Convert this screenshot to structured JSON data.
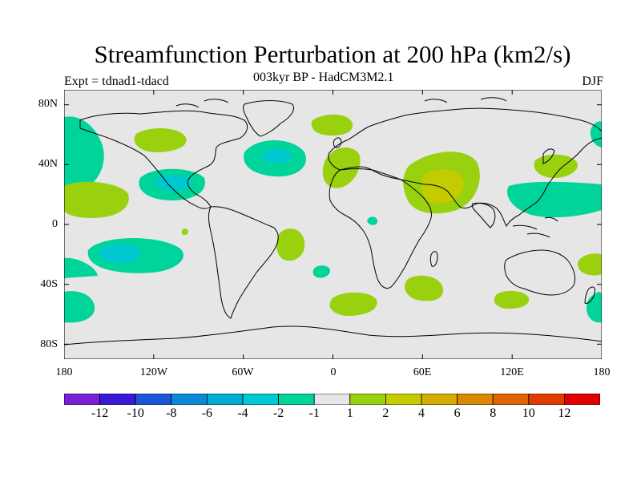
{
  "title": "Streamfunction Perturbation at 200 hPa (km2/s)",
  "subtitle": "003kyr BP - HadCM3M2.1",
  "left_label": "Expt = tdnad1-tdacd",
  "right_label": "DJF",
  "lat_ticks": [
    "80N",
    "40N",
    "0",
    "40S",
    "80S"
  ],
  "lon_ticks": [
    "180",
    "120W",
    "60W",
    "0",
    "60E",
    "120E",
    "180"
  ],
  "colorbar": {
    "labels": [
      "-12",
      "-10",
      "-8",
      "-6",
      "-4",
      "-2",
      "-1",
      "1",
      "2",
      "4",
      "6",
      "8",
      "10",
      "12"
    ],
    "colors": [
      "#7a1fd6",
      "#3a19d6",
      "#1b56d8",
      "#0c89d6",
      "#00abd6",
      "#00c8d0",
      "#00d49a",
      "#e6e6e6",
      "#99d10f",
      "#c4cc00",
      "#d6ab00",
      "#d98900",
      "#e06400",
      "#e03c00",
      "#e00000"
    ]
  },
  "colors": {
    "land_outline": "#000000",
    "background": "#e6e6e6"
  }
}
